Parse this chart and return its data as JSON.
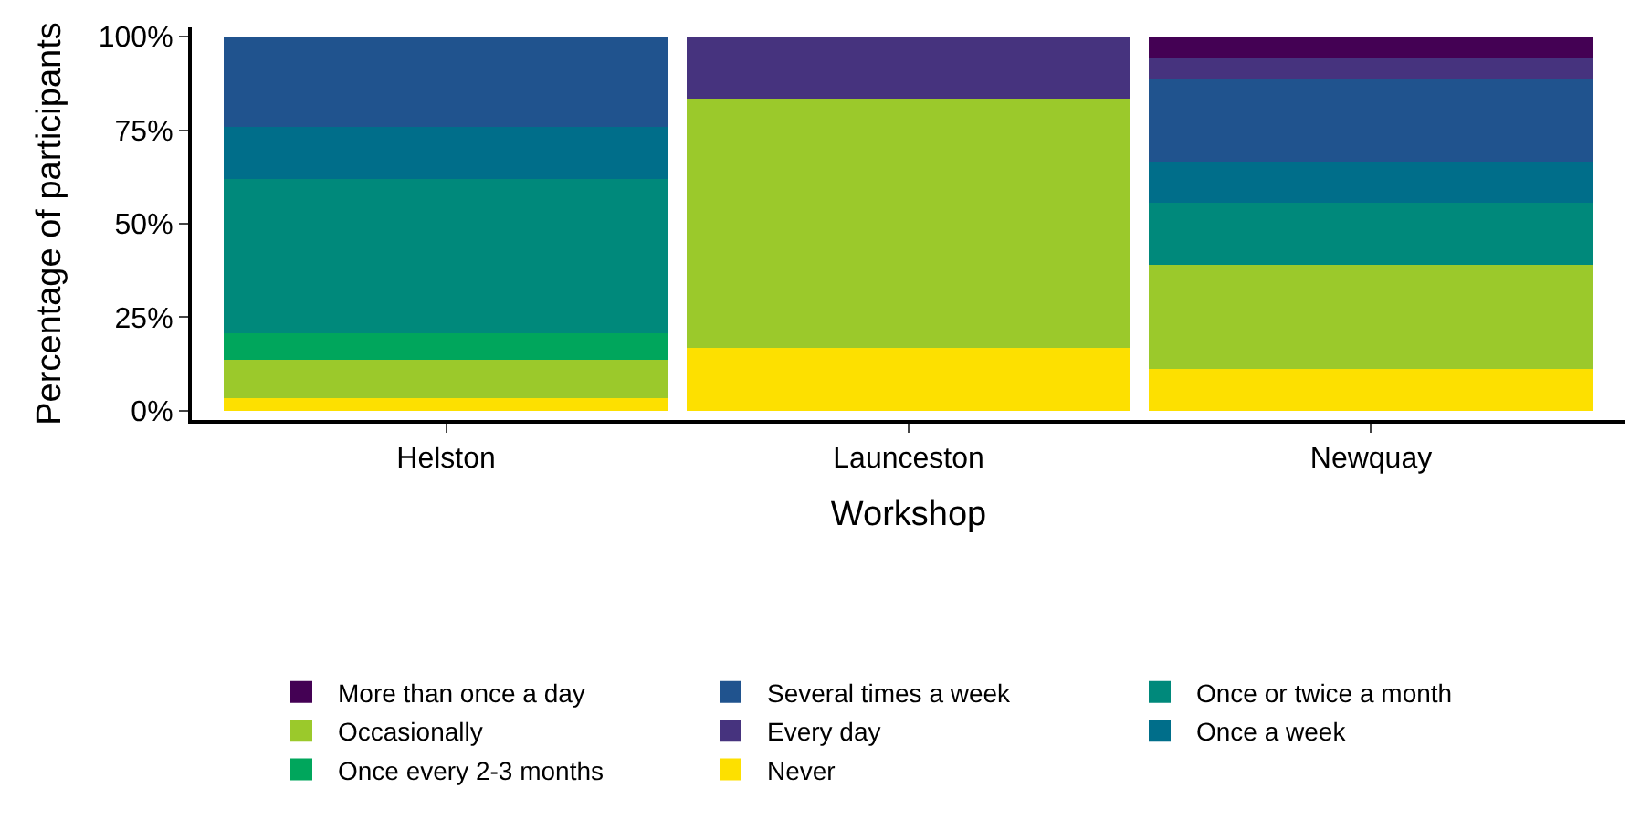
{
  "chart_data": {
    "type": "bar",
    "stacked": true,
    "xlabel": "Workshop",
    "ylabel": "Percentage of participants",
    "categories": [
      "Helston",
      "Launceston",
      "Newquay"
    ],
    "series": [
      {
        "name": "Never",
        "color": "#fde000",
        "values": [
          3.4,
          16.7,
          11.1
        ]
      },
      {
        "name": "Occasionally",
        "color": "#9bc92b",
        "values": [
          10.3,
          66.7,
          27.8
        ]
      },
      {
        "name": "Once every 2-3 months",
        "color": "#00a65c",
        "values": [
          6.9,
          0,
          0
        ]
      },
      {
        "name": "Once or twice a month",
        "color": "#00897b",
        "values": [
          41.4,
          0,
          16.7
        ]
      },
      {
        "name": "Once a week",
        "color": "#006e8a",
        "values": [
          13.8,
          0,
          11.1
        ]
      },
      {
        "name": "Several times a week",
        "color": "#20538e",
        "values": [
          24.1,
          0,
          22.2
        ]
      },
      {
        "name": "Every day",
        "color": "#46337e",
        "values": [
          0,
          16.7,
          5.6
        ]
      },
      {
        "name": "More than once a day",
        "color": "#440154",
        "values": [
          0,
          0,
          5.6
        ]
      }
    ],
    "ylim": [
      -2.5,
      102.5
    ],
    "yticks": [
      {
        "value": 0,
        "label": "0%"
      },
      {
        "value": 25,
        "label": "25%"
      },
      {
        "value": 50,
        "label": "50%"
      },
      {
        "value": 75,
        "label": "75%"
      },
      {
        "value": 100,
        "label": "100%"
      }
    ],
    "legend": "bottom"
  }
}
